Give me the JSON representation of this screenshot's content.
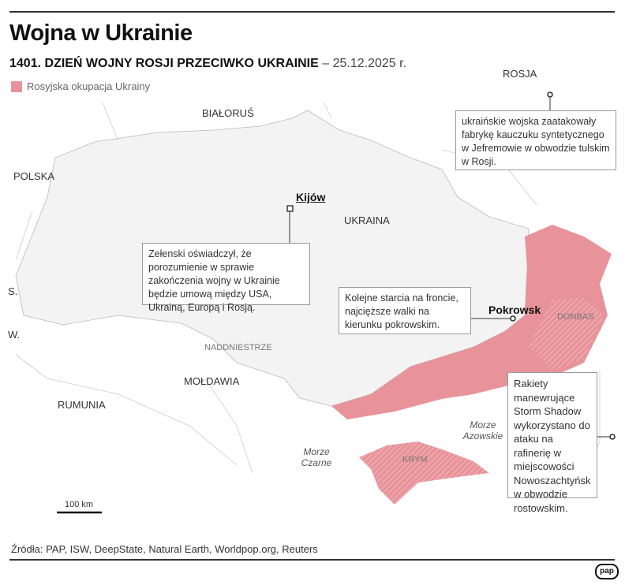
{
  "header": {
    "title": "Wojna w Ukrainie",
    "subtitle_bold": "1401. DZIEŃ WOJNY ROSJI PRZECIWKO UKRAINIE",
    "subtitle_date": "– 25.12.2025 r."
  },
  "legend": {
    "label": "Rosyjska okupacja Ukrainy",
    "color": "#e8939a"
  },
  "map": {
    "countries": [
      "ROSJA",
      "BIAŁORUŚ",
      "POLSKA",
      "UKRAINA",
      "S.",
      "W.",
      "MOŁDAWIA",
      "RUMUNIA"
    ],
    "regions": [
      "NADDNIESTRZE",
      "DONBAS",
      "KRYM"
    ],
    "seas": {
      "black": "Morze Czarne",
      "azov": "Morze Azowskie"
    },
    "cities": {
      "kyiv": "Kijów",
      "pokrovsk": "Pokrowsk"
    },
    "scale": "100 km",
    "occupied_color": "#e8939a",
    "land_color": "#f3f3f3"
  },
  "annotations": {
    "russia": "ukraińskie wojska zaatakowały fabrykę kauczuku syntetycznego w Jefremowie w obwodzie tulskim w Rosji.",
    "kyiv": "Zełenski oświadczył, że porozumienie w sprawie zakończenia wojny w Ukrainie będzie umową między USA, Ukrainą, Europą i Rosją.",
    "front": "Kolejne starcia na froncie, najcięższe walki na kierunku pokrowskim.",
    "rostov": "Rakiety manewrujące Storm Shadow wykorzystano do ataku na rafinerię w miejscowości Nowoszachtyńsk w obwodzie rostowskim."
  },
  "footer": {
    "sources": "Źródła: PAP, ISW, DeepState, Natural Earth, Worldpop.org, Reuters",
    "logo": "pap"
  }
}
